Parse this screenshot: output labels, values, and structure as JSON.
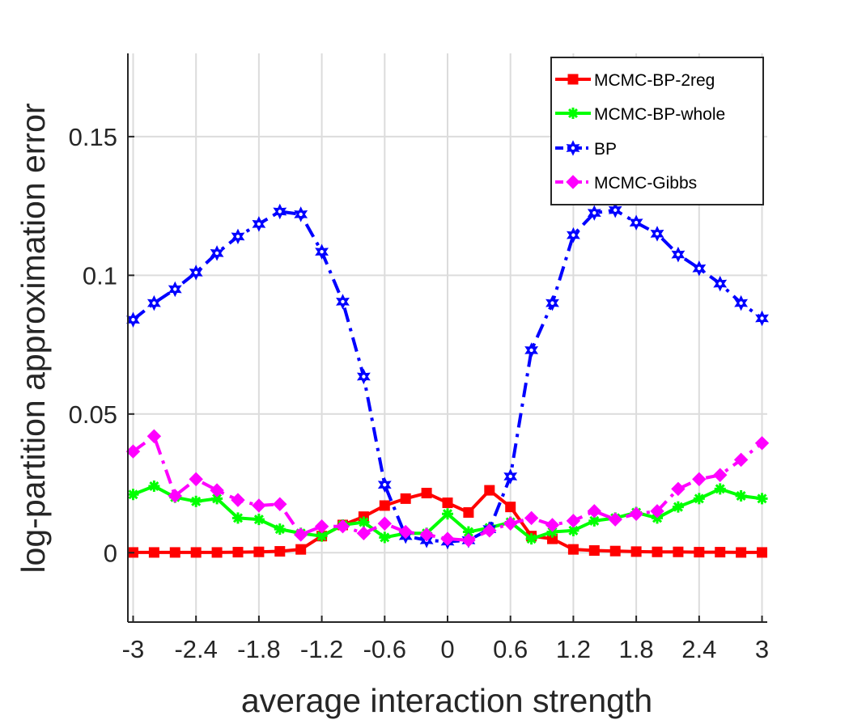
{
  "chart_data": {
    "type": "line",
    "title": "",
    "xlabel": "average interaction strength",
    "ylabel": "log-partition approximation error",
    "xlim": [
      -3.05,
      3.05
    ],
    "ylim": [
      -0.025,
      0.18
    ],
    "grid": true,
    "legend_position": "top-right",
    "xticks": [
      -3,
      -2.4,
      -1.8,
      -1.2,
      -0.6,
      0,
      0.6,
      1.2,
      1.8,
      2.4,
      3
    ],
    "xtick_labels": [
      "-3",
      "-2.4",
      "-1.8",
      "-1.2",
      "-0.6",
      "0",
      "0.6",
      "1.2",
      "1.8",
      "2.4",
      "3"
    ],
    "yticks": [
      0,
      0.05,
      0.1,
      0.15
    ],
    "ytick_labels": [
      "0",
      "0.05",
      "0.1",
      "0.15"
    ],
    "x": [
      -3,
      -2.8,
      -2.6,
      -2.4,
      -2.2,
      -2,
      -1.8,
      -1.6,
      -1.4,
      -1.2,
      -1,
      -0.8,
      -0.6,
      -0.4,
      -0.2,
      0,
      0.2,
      0.4,
      0.6,
      0.8,
      1,
      1.2,
      1.4,
      1.6,
      1.8,
      2,
      2.2,
      2.4,
      2.6,
      2.8,
      3
    ],
    "series": [
      {
        "name": "MCMC-BP-2reg",
        "color": "#ff0000",
        "line_style": "solid",
        "marker": "square",
        "values": [
          0.0001,
          0.0001,
          0.0001,
          0.0001,
          0.0001,
          0.0002,
          0.0003,
          0.0005,
          0.0012,
          0.006,
          0.01,
          0.013,
          0.017,
          0.0195,
          0.0215,
          0.018,
          0.0145,
          0.0225,
          0.0165,
          0.006,
          0.005,
          0.0012,
          0.0008,
          0.0006,
          0.0004,
          0.0003,
          0.0003,
          0.0002,
          0.0002,
          0.0001,
          0.0001
        ]
      },
      {
        "name": "MCMC-BP-whole",
        "color": "#00ff00",
        "line_style": "solid",
        "marker": "asterisk",
        "values": [
          0.021,
          0.024,
          0.02,
          0.0185,
          0.0195,
          0.0125,
          0.012,
          0.0085,
          0.007,
          0.006,
          0.01,
          0.011,
          0.0055,
          0.007,
          0.007,
          0.014,
          0.0075,
          0.009,
          0.011,
          0.005,
          0.0075,
          0.008,
          0.0115,
          0.0125,
          0.0145,
          0.0125,
          0.0165,
          0.0195,
          0.023,
          0.0205,
          0.0195
        ]
      },
      {
        "name": "BP",
        "color": "#0000ff",
        "line_style": "dashdot",
        "marker": "hexagram",
        "values": [
          0.084,
          0.09,
          0.095,
          0.101,
          0.108,
          0.114,
          0.1185,
          0.123,
          0.122,
          0.1085,
          0.0905,
          0.0635,
          0.0245,
          0.006,
          0.0045,
          0.004,
          0.0045,
          0.0085,
          0.0275,
          0.073,
          0.09,
          0.1145,
          0.1225,
          0.1235,
          0.119,
          0.115,
          0.1075,
          0.1025,
          0.097,
          0.09,
          0.0845
        ]
      },
      {
        "name": "MCMC-Gibbs",
        "color": "#ff00ff",
        "line_style": "dashdot",
        "marker": "diamond",
        "values": [
          0.0365,
          0.042,
          0.0205,
          0.0265,
          0.0225,
          0.019,
          0.017,
          0.0175,
          0.0065,
          0.0095,
          0.0095,
          0.007,
          0.0105,
          0.0075,
          0.0065,
          0.005,
          0.0045,
          0.008,
          0.0105,
          0.0125,
          0.01,
          0.0115,
          0.015,
          0.012,
          0.014,
          0.015,
          0.023,
          0.0265,
          0.028,
          0.0335,
          0.0395
        ]
      }
    ]
  }
}
